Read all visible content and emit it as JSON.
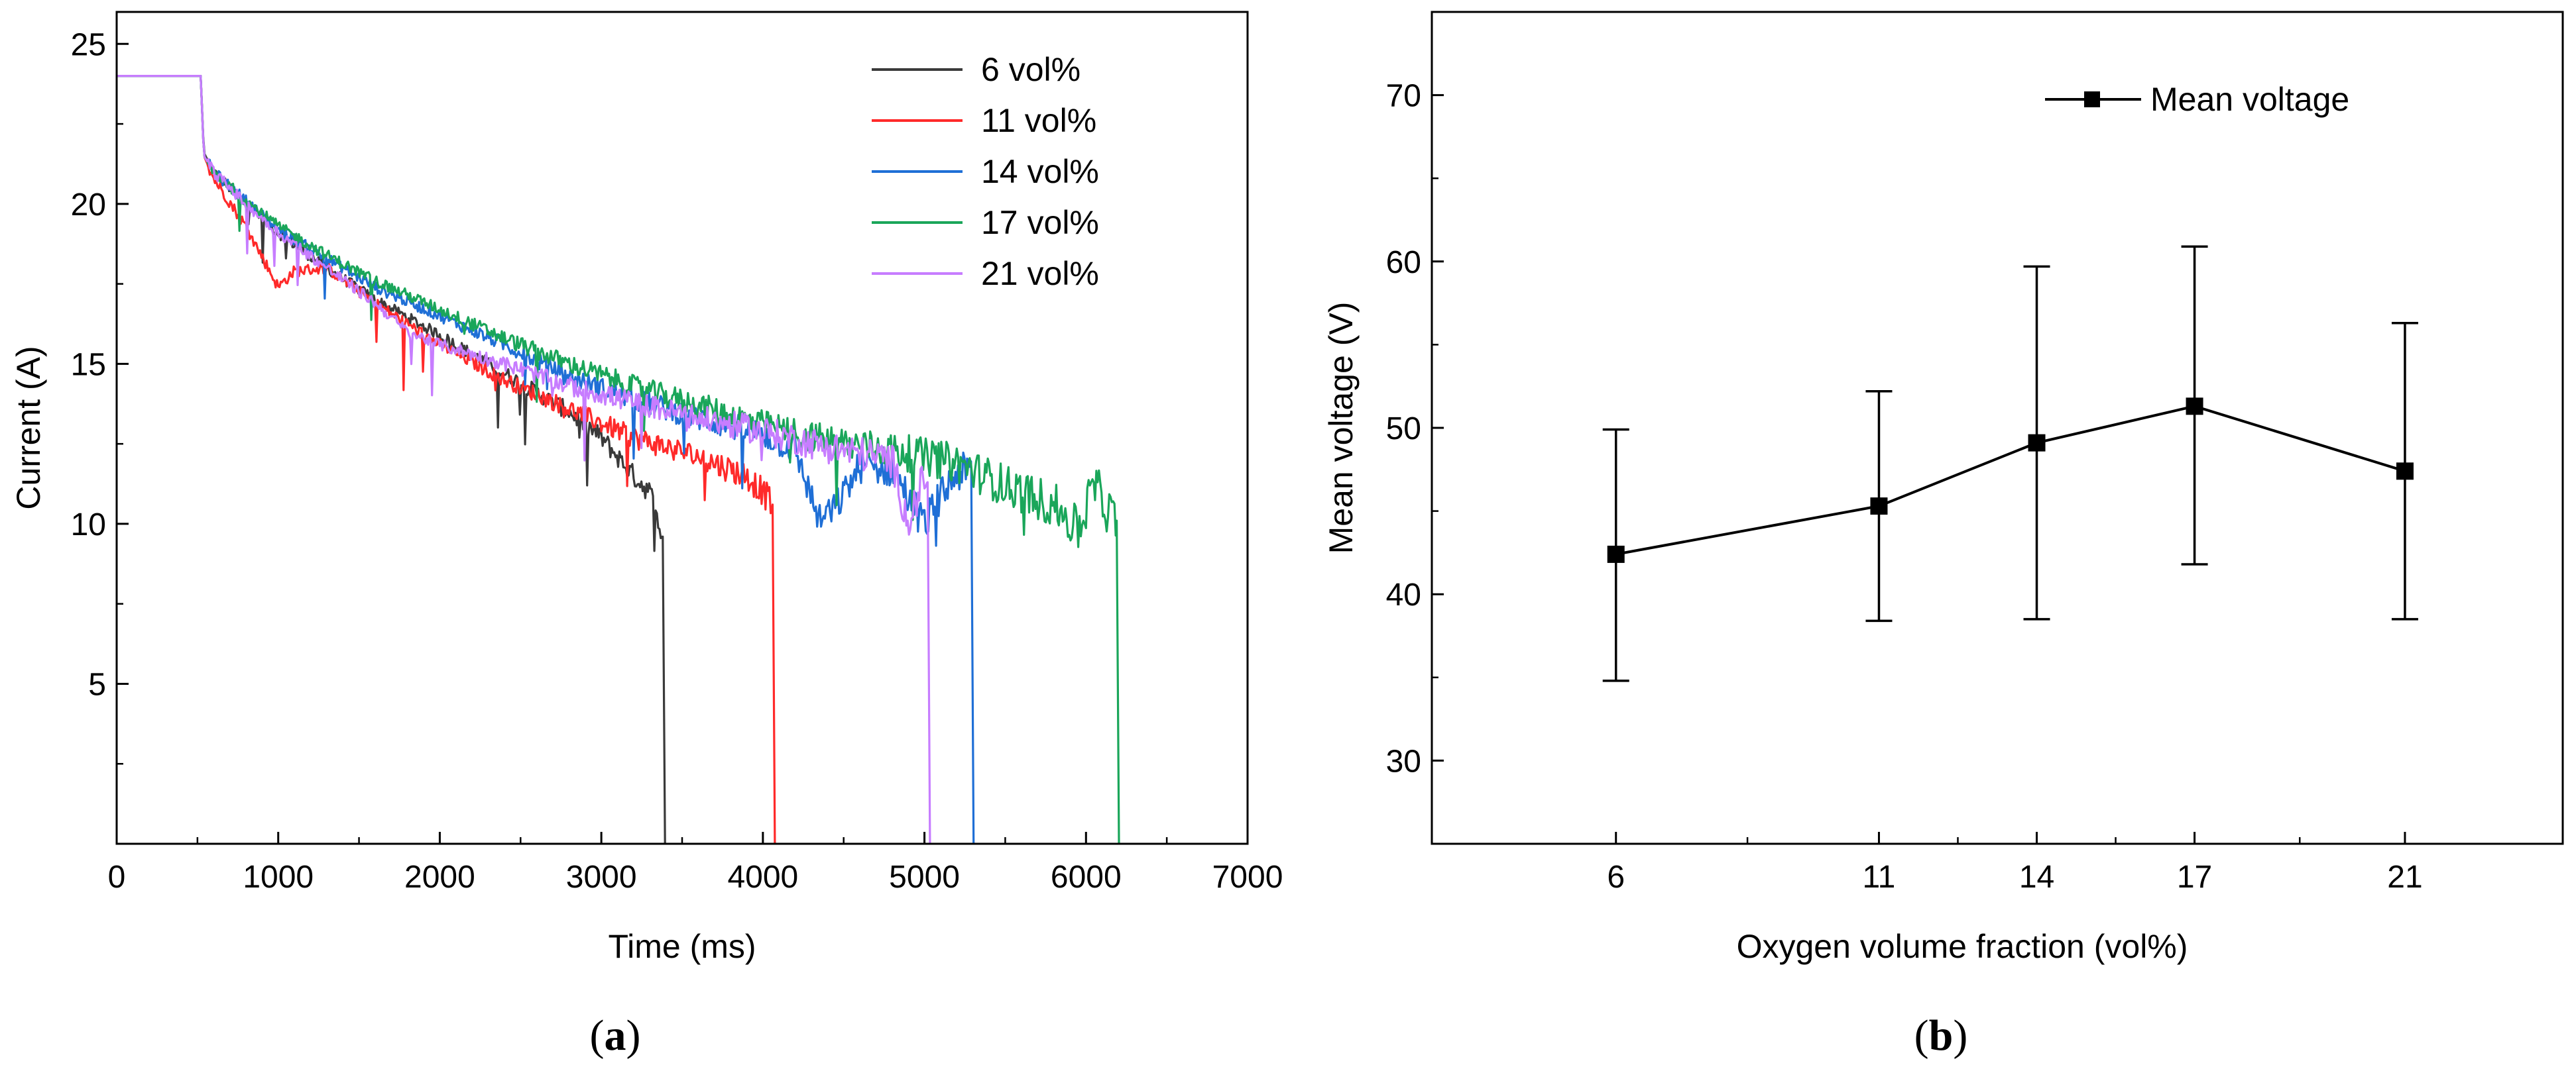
{
  "chart_data": [
    {
      "type": "line",
      "panel_label": "a",
      "xlabel": "Time (ms)",
      "ylabel": "Current (A)",
      "xlim": [
        0,
        7000
      ],
      "ylim": [
        0,
        26
      ],
      "xticks": [
        0,
        1000,
        2000,
        3000,
        4000,
        5000,
        6000,
        7000
      ],
      "yticks": [
        5,
        10,
        15,
        20,
        25
      ],
      "grid": false,
      "legend_position": "top-right",
      "series": [
        {
          "name": "6 vol%",
          "color": "#3a3a3a",
          "end_time": 3380,
          "level_at_end": 9.6,
          "x": [
            0,
            520,
            540,
            600,
            800,
            1000,
            1300,
            1600,
            2000,
            2400,
            2800,
            3000,
            3200,
            3300,
            3350,
            3380,
            3400
          ],
          "y": [
            24,
            24,
            21.6,
            21.0,
            20.0,
            19.1,
            18.0,
            17.0,
            15.9,
            14.7,
            13.5,
            12.7,
            11.5,
            11.0,
            10.2,
            9.6,
            0
          ]
        },
        {
          "name": "11 vol%",
          "color": "#ff2a2a",
          "end_time": 4060,
          "level_at_end": 10.6,
          "x": [
            0,
            520,
            540,
            600,
            800,
            1000,
            1100,
            1300,
            1600,
            2000,
            2400,
            2800,
            3200,
            3600,
            3900,
            4000,
            4060,
            4080
          ],
          "y": [
            24,
            24,
            21.5,
            20.8,
            19.3,
            17.4,
            17.9,
            18.0,
            16.9,
            15.6,
            14.5,
            13.6,
            12.7,
            12.1,
            11.5,
            11.0,
            10.6,
            0
          ]
        },
        {
          "name": "14 vol%",
          "color": "#1f6fd6",
          "end_time": 5290,
          "level_at_end": 11.6,
          "x": [
            0,
            520,
            540,
            600,
            800,
            1000,
            1300,
            1600,
            2000,
            2400,
            2800,
            3200,
            3600,
            4000,
            4200,
            4350,
            4450,
            4600,
            4800,
            5000,
            5200,
            5290,
            5310
          ],
          "y": [
            24,
            24,
            21.5,
            21.0,
            20.1,
            19.2,
            18.3,
            17.4,
            16.5,
            15.6,
            14.6,
            13.9,
            13.3,
            12.8,
            12.3,
            10.1,
            10.5,
            11.8,
            11.7,
            10.0,
            11.6,
            11.6,
            0
          ]
        },
        {
          "name": "17 vol%",
          "color": "#1aa65a",
          "end_time": 6190,
          "level_at_end": 10.1,
          "x": [
            0,
            520,
            540,
            600,
            800,
            1000,
            1300,
            1600,
            2000,
            2400,
            2800,
            3200,
            3600,
            4000,
            4400,
            4800,
            5200,
            5500,
            5800,
            5950,
            6050,
            6150,
            6190,
            6210
          ],
          "y": [
            24,
            24,
            21.5,
            21.0,
            20.1,
            19.3,
            18.4,
            17.6,
            16.7,
            15.8,
            15.0,
            14.3,
            13.7,
            13.1,
            12.6,
            12.3,
            11.9,
            11.2,
            10.6,
            9.8,
            11.2,
            10.3,
            10.1,
            0
          ]
        },
        {
          "name": "21 vol%",
          "color": "#c77dff",
          "end_time": 5020,
          "level_at_end": 11.3,
          "x": [
            0,
            520,
            540,
            600,
            800,
            1000,
            1300,
            1600,
            1800,
            2000,
            2400,
            2800,
            3200,
            3600,
            4000,
            4400,
            4800,
            4900,
            5000,
            5020,
            5040
          ],
          "y": [
            24,
            24,
            21.5,
            21.0,
            20.0,
            19.1,
            18.0,
            16.9,
            16.0,
            15.6,
            15.0,
            14.3,
            13.8,
            13.3,
            12.9,
            12.4,
            12.0,
            10.0,
            11.5,
            11.3,
            0
          ]
        }
      ]
    },
    {
      "type": "scatter",
      "panel_label": "b",
      "xlabel": "Oxygen volume fraction (vol%)",
      "ylabel": "Mean voltage (V)",
      "xlim": [
        2.5,
        24
      ],
      "ylim": [
        25,
        75
      ],
      "xticks": [
        6,
        11,
        14,
        17,
        21
      ],
      "yticks": [
        30,
        40,
        50,
        60,
        70
      ],
      "grid": false,
      "legend_position": "top-right",
      "series": [
        {
          "name": "Mean voltage",
          "color": "#000000",
          "x": [
            6,
            11,
            14,
            17,
            21
          ],
          "y": [
            42.4,
            45.3,
            49.1,
            51.3,
            47.4
          ],
          "error_low": [
            34.8,
            38.4,
            38.5,
            41.8,
            38.5
          ],
          "error_high": [
            49.9,
            52.2,
            59.7,
            60.9,
            56.3
          ]
        }
      ]
    }
  ]
}
